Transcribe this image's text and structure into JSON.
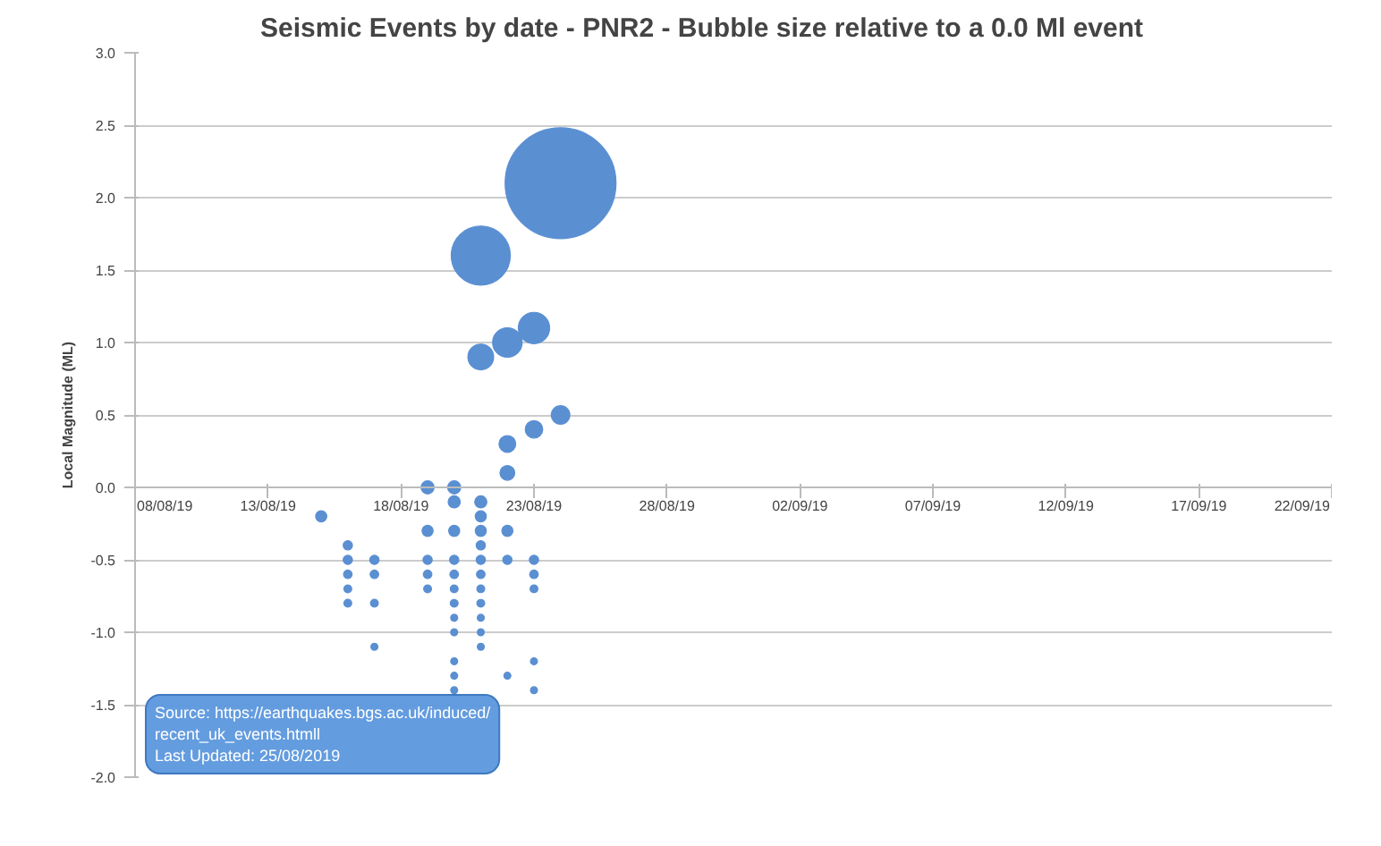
{
  "chart_data": {
    "type": "bubble",
    "title": "Seismic Events by date - PNR2 - Bubble size relative to a 0.0 Ml event",
    "ylabel": "Local Magnitude (ML)",
    "annotations": [
      "Source: https://earthquakes.bgs.ac.uk/induced/\nrecent_uk_events.htmll\nLast Updated:  25/08/2019"
    ],
    "series": [
      {
        "color": "#5a8fd2",
        "x": [
          "2019-08-15",
          "2019-08-16",
          "2019-08-16",
          "2019-08-16",
          "2019-08-16",
          "2019-08-16",
          "2019-08-17",
          "2019-08-17",
          "2019-08-17",
          "2019-08-17",
          "2019-08-19",
          "2019-08-19",
          "2019-08-19",
          "2019-08-19",
          "2019-08-19",
          "2019-08-20",
          "2019-08-20",
          "2019-08-20",
          "2019-08-20",
          "2019-08-20",
          "2019-08-20",
          "2019-08-20",
          "2019-08-20",
          "2019-08-20",
          "2019-08-20",
          "2019-08-20",
          "2019-08-20",
          "2019-08-21",
          "2019-08-21",
          "2019-08-21",
          "2019-08-21",
          "2019-08-21",
          "2019-08-21",
          "2019-08-21",
          "2019-08-21",
          "2019-08-21",
          "2019-08-21",
          "2019-08-21",
          "2019-08-21",
          "2019-08-21",
          "2019-08-22",
          "2019-08-22",
          "2019-08-22",
          "2019-08-22",
          "2019-08-22",
          "2019-08-22",
          "2019-08-23",
          "2019-08-23",
          "2019-08-23",
          "2019-08-23",
          "2019-08-23",
          "2019-08-23",
          "2019-08-23",
          "2019-08-24",
          "2019-08-24"
        ],
        "values": [
          -0.2,
          -0.4,
          -0.5,
          -0.6,
          -0.7,
          -0.8,
          -0.5,
          -0.6,
          -0.8,
          -1.1,
          0.0,
          -0.3,
          -0.5,
          -0.6,
          -0.7,
          0.0,
          -0.1,
          -0.3,
          -0.5,
          -0.6,
          -0.7,
          -0.8,
          -0.9,
          -1.0,
          -1.2,
          -1.3,
          -1.4,
          1.6,
          0.9,
          -0.1,
          -0.2,
          -0.3,
          -0.4,
          -0.5,
          -0.6,
          -0.7,
          -0.8,
          -0.9,
          -1.0,
          -1.1,
          1.0,
          0.3,
          0.1,
          -0.3,
          -0.5,
          -1.3,
          1.1,
          0.4,
          -0.5,
          -0.6,
          -0.7,
          -1.2,
          -1.4,
          2.1,
          0.5
        ],
        "sizes": [
          0.01,
          0.007,
          0.007,
          0.006,
          0.005,
          0.005,
          0.007,
          0.006,
          0.005,
          0.004,
          0.014,
          0.01,
          0.007,
          0.006,
          0.005,
          0.014,
          0.012,
          0.01,
          0.007,
          0.006,
          0.005,
          0.005,
          0.004,
          0.004,
          0.004,
          0.004,
          0.004,
          0.284,
          0.054,
          0.012,
          0.01,
          0.01,
          0.007,
          0.007,
          0.006,
          0.005,
          0.005,
          0.004,
          0.004,
          0.004,
          0.071,
          0.023,
          0.018,
          0.01,
          0.007,
          0.004,
          0.08,
          0.025,
          0.007,
          0.006,
          0.005,
          0.004,
          0.004,
          1,
          0.028
        ]
      }
    ],
    "xlim": [
      "2019-08-08",
      "2019-09-22"
    ],
    "xticks": [
      {
        "value": "2019-08-08",
        "label": "08/08/19"
      },
      {
        "value": "2019-08-13",
        "label": "13/08/19"
      },
      {
        "value": "2019-08-18",
        "label": "18/08/19"
      },
      {
        "value": "2019-08-23",
        "label": "23/08/19"
      },
      {
        "value": "2019-08-28",
        "label": "28/08/19"
      },
      {
        "value": "2019-09-02",
        "label": "02/09/19"
      },
      {
        "value": "2019-09-07",
        "label": "07/09/19"
      },
      {
        "value": "2019-09-12",
        "label": "12/09/19"
      },
      {
        "value": "2019-09-17",
        "label": "17/09/19"
      },
      {
        "value": "2019-09-22",
        "label": "22/09/19"
      }
    ],
    "ylim": [
      -2.0,
      3.0
    ],
    "yticks": [
      {
        "value": -2.0,
        "label": "-2.0"
      },
      {
        "value": -1.5,
        "label": "-1.5"
      },
      {
        "value": -1.0,
        "label": "-1.0"
      },
      {
        "value": -0.5,
        "label": "-0.5"
      },
      {
        "value": 0.0,
        "label": "0.0"
      },
      {
        "value": 0.5,
        "label": "0.5"
      },
      {
        "value": 1.0,
        "label": "1.0"
      },
      {
        "value": 1.5,
        "label": "1.5"
      },
      {
        "value": 2.0,
        "label": "2.0"
      },
      {
        "value": 2.5,
        "label": "2.5"
      },
      {
        "value": 3.0,
        "label": "3.0"
      }
    ],
    "grid": "y"
  }
}
